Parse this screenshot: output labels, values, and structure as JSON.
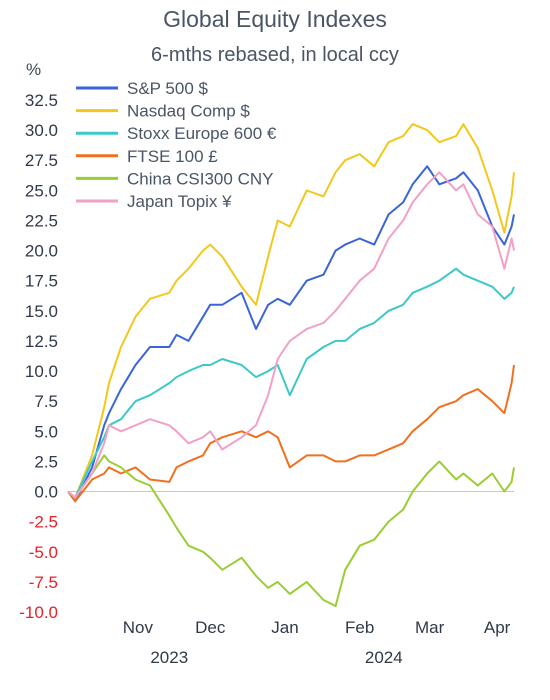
{
  "chart_data": {
    "type": "line",
    "title": "Global Equity Indexes",
    "subtitle": "6-mths rebased, in local ccy",
    "ylabel": "%",
    "ylim": [
      -10,
      32.5
    ],
    "yticks": [
      32.5,
      30.0,
      27.5,
      25.0,
      22.5,
      20.0,
      17.5,
      15.0,
      12.5,
      10.0,
      7.5,
      5.0,
      2.5,
      0.0,
      -2.5,
      -5.0,
      -7.5,
      -10.0
    ],
    "negative_tick_color": "#e8202a",
    "positive_tick_color": "#2f3a4a",
    "x_month_labels": [
      "Nov",
      "Dec",
      "Jan",
      "Feb",
      "Mar",
      "Apr"
    ],
    "x_year_labels": [
      "2023",
      "2024"
    ],
    "x_start": "2023-10-17",
    "x_end": "2024-04-19",
    "legend_position": "top-left",
    "series": [
      {
        "name": "S&P 500 $",
        "color": "#3a64d8",
        "points": [
          [
            "2023-10-17",
            0
          ],
          [
            "2023-10-20",
            -0.8
          ],
          [
            "2023-10-27",
            2.0
          ],
          [
            "2023-11-01",
            5.5
          ],
          [
            "2023-11-03",
            6.5
          ],
          [
            "2023-11-08",
            8.5
          ],
          [
            "2023-11-14",
            10.5
          ],
          [
            "2023-11-20",
            12.0
          ],
          [
            "2023-11-28",
            12.0
          ],
          [
            "2023-12-01",
            13.0
          ],
          [
            "2023-12-06",
            12.5
          ],
          [
            "2023-12-12",
            14.5
          ],
          [
            "2023-12-15",
            15.5
          ],
          [
            "2023-12-20",
            15.5
          ],
          [
            "2023-12-28",
            16.5
          ],
          [
            "2024-01-03",
            13.5
          ],
          [
            "2024-01-08",
            15.5
          ],
          [
            "2024-01-12",
            16.0
          ],
          [
            "2024-01-17",
            15.5
          ],
          [
            "2024-01-24",
            17.5
          ],
          [
            "2024-01-31",
            18.0
          ],
          [
            "2024-02-05",
            20.0
          ],
          [
            "2024-02-09",
            20.5
          ],
          [
            "2024-02-15",
            21.0
          ],
          [
            "2024-02-21",
            20.5
          ],
          [
            "2024-02-27",
            23.0
          ],
          [
            "2024-03-04",
            24.0
          ],
          [
            "2024-03-08",
            25.5
          ],
          [
            "2024-03-14",
            27.0
          ],
          [
            "2024-03-19",
            25.5
          ],
          [
            "2024-03-26",
            26.0
          ],
          [
            "2024-03-29",
            26.5
          ],
          [
            "2024-04-04",
            25.0
          ],
          [
            "2024-04-10",
            22.0
          ],
          [
            "2024-04-15",
            20.5
          ],
          [
            "2024-04-18",
            22.0
          ],
          [
            "2024-04-19",
            23.0
          ]
        ]
      },
      {
        "name": "Nasdaq Comp $",
        "color": "#f2c81c",
        "points": [
          [
            "2023-10-17",
            0
          ],
          [
            "2023-10-20",
            -0.5
          ],
          [
            "2023-10-27",
            3.0
          ],
          [
            "2023-11-01",
            7.0
          ],
          [
            "2023-11-03",
            9.0
          ],
          [
            "2023-11-08",
            12.0
          ],
          [
            "2023-11-14",
            14.5
          ],
          [
            "2023-11-20",
            16.0
          ],
          [
            "2023-11-28",
            16.5
          ],
          [
            "2023-12-01",
            17.5
          ],
          [
            "2023-12-06",
            18.5
          ],
          [
            "2023-12-12",
            20.0
          ],
          [
            "2023-12-15",
            20.5
          ],
          [
            "2023-12-20",
            19.5
          ],
          [
            "2023-12-28",
            17.0
          ],
          [
            "2024-01-03",
            15.5
          ],
          [
            "2024-01-08",
            19.5
          ],
          [
            "2024-01-12",
            22.5
          ],
          [
            "2024-01-17",
            22.0
          ],
          [
            "2024-01-24",
            25.0
          ],
          [
            "2024-01-31",
            24.5
          ],
          [
            "2024-02-05",
            26.5
          ],
          [
            "2024-02-09",
            27.5
          ],
          [
            "2024-02-15",
            28.0
          ],
          [
            "2024-02-21",
            27.0
          ],
          [
            "2024-02-27",
            29.0
          ],
          [
            "2024-03-04",
            29.5
          ],
          [
            "2024-03-08",
            30.5
          ],
          [
            "2024-03-14",
            30.0
          ],
          [
            "2024-03-19",
            29.0
          ],
          [
            "2024-03-26",
            29.5
          ],
          [
            "2024-03-29",
            30.5
          ],
          [
            "2024-04-04",
            28.5
          ],
          [
            "2024-04-10",
            25.0
          ],
          [
            "2024-04-15",
            21.5
          ],
          [
            "2024-04-18",
            24.5
          ],
          [
            "2024-04-19",
            26.5
          ]
        ]
      },
      {
        "name": "Stoxx Europe 600 €",
        "color": "#3cc8c8",
        "points": [
          [
            "2023-10-17",
            0
          ],
          [
            "2023-10-20",
            -0.5
          ],
          [
            "2023-10-27",
            2.5
          ],
          [
            "2023-11-01",
            4.5
          ],
          [
            "2023-11-03",
            5.5
          ],
          [
            "2023-11-08",
            6.0
          ],
          [
            "2023-11-14",
            7.5
          ],
          [
            "2023-11-20",
            8.0
          ],
          [
            "2023-11-28",
            9.0
          ],
          [
            "2023-12-01",
            9.5
          ],
          [
            "2023-12-06",
            10.0
          ],
          [
            "2023-12-12",
            10.5
          ],
          [
            "2023-12-15",
            10.5
          ],
          [
            "2023-12-20",
            11.0
          ],
          [
            "2023-12-28",
            10.5
          ],
          [
            "2024-01-03",
            9.5
          ],
          [
            "2024-01-08",
            10.0
          ],
          [
            "2024-01-12",
            10.5
          ],
          [
            "2024-01-17",
            8.0
          ],
          [
            "2024-01-24",
            11.0
          ],
          [
            "2024-01-31",
            12.0
          ],
          [
            "2024-02-05",
            12.5
          ],
          [
            "2024-02-09",
            12.5
          ],
          [
            "2024-02-15",
            13.5
          ],
          [
            "2024-02-21",
            14.0
          ],
          [
            "2024-02-27",
            15.0
          ],
          [
            "2024-03-04",
            15.5
          ],
          [
            "2024-03-08",
            16.5
          ],
          [
            "2024-03-14",
            17.0
          ],
          [
            "2024-03-19",
            17.5
          ],
          [
            "2024-03-26",
            18.5
          ],
          [
            "2024-03-29",
            18.0
          ],
          [
            "2024-04-04",
            17.5
          ],
          [
            "2024-04-10",
            17.0
          ],
          [
            "2024-04-15",
            16.0
          ],
          [
            "2024-04-18",
            16.5
          ],
          [
            "2024-04-19",
            17.0
          ]
        ]
      },
      {
        "name": "FTSE 100  £",
        "color": "#f0701e",
        "points": [
          [
            "2023-10-17",
            0
          ],
          [
            "2023-10-20",
            -0.8
          ],
          [
            "2023-10-27",
            1.0
          ],
          [
            "2023-11-01",
            1.5
          ],
          [
            "2023-11-03",
            2.0
          ],
          [
            "2023-11-08",
            1.5
          ],
          [
            "2023-11-14",
            2.0
          ],
          [
            "2023-11-20",
            1.0
          ],
          [
            "2023-11-28",
            0.8
          ],
          [
            "2023-12-01",
            2.0
          ],
          [
            "2023-12-06",
            2.5
          ],
          [
            "2023-12-12",
            3.0
          ],
          [
            "2023-12-15",
            4.0
          ],
          [
            "2023-12-20",
            4.5
          ],
          [
            "2023-12-28",
            5.0
          ],
          [
            "2024-01-03",
            4.5
          ],
          [
            "2024-01-08",
            5.0
          ],
          [
            "2024-01-12",
            4.5
          ],
          [
            "2024-01-17",
            2.0
          ],
          [
            "2024-01-24",
            3.0
          ],
          [
            "2024-01-31",
            3.0
          ],
          [
            "2024-02-05",
            2.5
          ],
          [
            "2024-02-09",
            2.5
          ],
          [
            "2024-02-15",
            3.0
          ],
          [
            "2024-02-21",
            3.0
          ],
          [
            "2024-02-27",
            3.5
          ],
          [
            "2024-03-04",
            4.0
          ],
          [
            "2024-03-08",
            5.0
          ],
          [
            "2024-03-14",
            6.0
          ],
          [
            "2024-03-19",
            7.0
          ],
          [
            "2024-03-26",
            7.5
          ],
          [
            "2024-03-29",
            8.0
          ],
          [
            "2024-04-04",
            8.5
          ],
          [
            "2024-04-10",
            7.5
          ],
          [
            "2024-04-15",
            6.5
          ],
          [
            "2024-04-18",
            9.0
          ],
          [
            "2024-04-19",
            10.5
          ]
        ]
      },
      {
        "name": "China CSI300  CNY",
        "color": "#9acd32",
        "points": [
          [
            "2023-10-17",
            0
          ],
          [
            "2023-10-20",
            -0.5
          ],
          [
            "2023-10-27",
            1.5
          ],
          [
            "2023-11-01",
            3.0
          ],
          [
            "2023-11-03",
            2.5
          ],
          [
            "2023-11-08",
            2.0
          ],
          [
            "2023-11-14",
            1.0
          ],
          [
            "2023-11-20",
            0.5
          ],
          [
            "2023-11-28",
            -2.0
          ],
          [
            "2023-12-01",
            -3.0
          ],
          [
            "2023-12-06",
            -4.5
          ],
          [
            "2023-12-12",
            -5.0
          ],
          [
            "2023-12-15",
            -5.5
          ],
          [
            "2023-12-20",
            -6.5
          ],
          [
            "2023-12-28",
            -5.5
          ],
          [
            "2024-01-03",
            -7.0
          ],
          [
            "2024-01-08",
            -8.0
          ],
          [
            "2024-01-12",
            -7.5
          ],
          [
            "2024-01-17",
            -8.5
          ],
          [
            "2024-01-24",
            -7.5
          ],
          [
            "2024-01-31",
            -9.0
          ],
          [
            "2024-02-05",
            -9.5
          ],
          [
            "2024-02-09",
            -6.5
          ],
          [
            "2024-02-15",
            -4.5
          ],
          [
            "2024-02-21",
            -4.0
          ],
          [
            "2024-02-27",
            -2.5
          ],
          [
            "2024-03-04",
            -1.5
          ],
          [
            "2024-03-08",
            0.0
          ],
          [
            "2024-03-14",
            1.5
          ],
          [
            "2024-03-19",
            2.5
          ],
          [
            "2024-03-26",
            1.0
          ],
          [
            "2024-03-29",
            1.5
          ],
          [
            "2024-04-04",
            0.5
          ],
          [
            "2024-04-10",
            1.5
          ],
          [
            "2024-04-15",
            0.0
          ],
          [
            "2024-04-18",
            0.8
          ],
          [
            "2024-04-19",
            2.0
          ]
        ]
      },
      {
        "name": "Japan Topix ¥",
        "color": "#f2a0c8",
        "points": [
          [
            "2023-10-17",
            0
          ],
          [
            "2023-10-20",
            -0.5
          ],
          [
            "2023-10-27",
            1.5
          ],
          [
            "2023-11-01",
            4.0
          ],
          [
            "2023-11-03",
            5.5
          ],
          [
            "2023-11-08",
            5.0
          ],
          [
            "2023-11-14",
            5.5
          ],
          [
            "2023-11-20",
            6.0
          ],
          [
            "2023-11-28",
            5.5
          ],
          [
            "2023-12-01",
            5.0
          ],
          [
            "2023-12-06",
            4.0
          ],
          [
            "2023-12-12",
            4.5
          ],
          [
            "2023-12-15",
            5.0
          ],
          [
            "2023-12-20",
            3.5
          ],
          [
            "2023-12-28",
            4.5
          ],
          [
            "2024-01-03",
            5.5
          ],
          [
            "2024-01-08",
            8.0
          ],
          [
            "2024-01-12",
            11.0
          ],
          [
            "2024-01-17",
            12.5
          ],
          [
            "2024-01-24",
            13.5
          ],
          [
            "2024-01-31",
            14.0
          ],
          [
            "2024-02-05",
            15.0
          ],
          [
            "2024-02-09",
            16.0
          ],
          [
            "2024-02-15",
            17.5
          ],
          [
            "2024-02-21",
            18.5
          ],
          [
            "2024-02-27",
            21.0
          ],
          [
            "2024-03-04",
            22.5
          ],
          [
            "2024-03-08",
            24.0
          ],
          [
            "2024-03-14",
            25.5
          ],
          [
            "2024-03-19",
            26.5
          ],
          [
            "2024-03-26",
            25.0
          ],
          [
            "2024-03-29",
            25.5
          ],
          [
            "2024-04-04",
            23.0
          ],
          [
            "2024-04-10",
            22.0
          ],
          [
            "2024-04-15",
            18.5
          ],
          [
            "2024-04-18",
            21.0
          ],
          [
            "2024-04-19",
            20.0
          ]
        ]
      }
    ]
  }
}
